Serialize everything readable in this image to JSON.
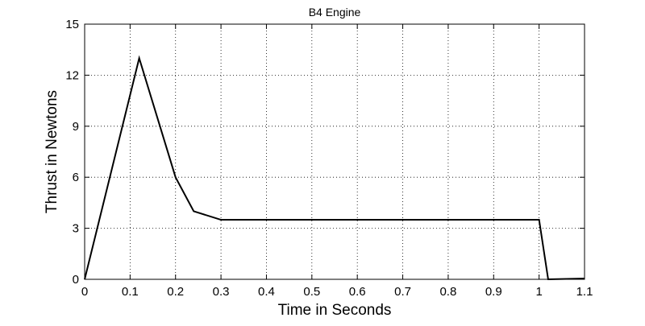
{
  "chart_data": {
    "type": "line",
    "title": "B4 Engine",
    "xlabel": "Time in Seconds",
    "ylabel": "Thrust in Newtons",
    "xlim": [
      0,
      1.1
    ],
    "ylim": [
      0,
      15
    ],
    "grid": true,
    "xticks": [
      0,
      0.1,
      0.2,
      0.3,
      0.4,
      0.5,
      0.6,
      0.7,
      0.8,
      0.9,
      1,
      1.1
    ],
    "xtick_labels": [
      "0",
      "0.1",
      "0.2",
      "0.3",
      "0.4",
      "0.5",
      "0.6",
      "0.7",
      "0.8",
      "0.9",
      "1",
      "1.1"
    ],
    "yticks": [
      0,
      3,
      6,
      9,
      12,
      15
    ],
    "ytick_labels": [
      "0",
      "3",
      "6",
      "9",
      "12",
      "15"
    ],
    "series": [
      {
        "color": "#000000",
        "x": [
          0,
          0.12,
          0.2,
          0.24,
          0.3,
          1.0,
          1.02,
          1.1
        ],
        "y": [
          0,
          13,
          6,
          4,
          3.5,
          3.5,
          0,
          0.05
        ]
      }
    ]
  }
}
